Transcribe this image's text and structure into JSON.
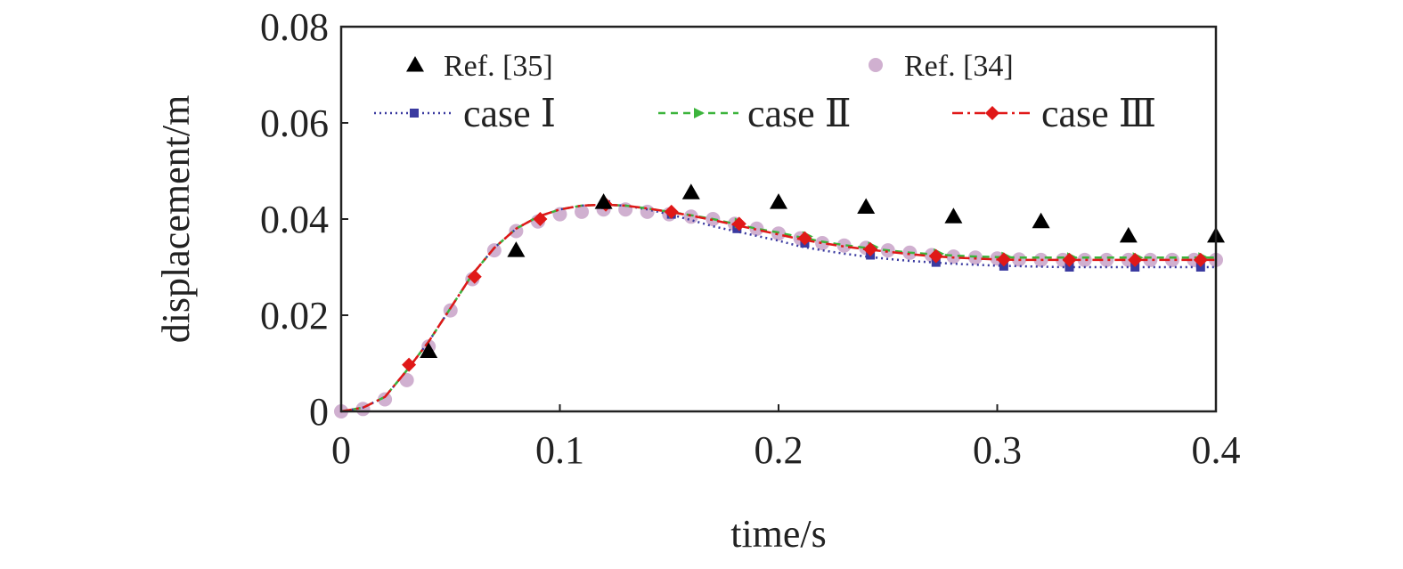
{
  "chart_data": {
    "type": "line",
    "xlabel": "time/s",
    "ylabel": "displacement/m",
    "xlim": [
      0,
      0.4
    ],
    "ylim": [
      0,
      0.08
    ],
    "x_ticks": [
      0,
      0.1,
      0.2,
      0.3,
      0.4
    ],
    "x_tick_labels": [
      "0",
      "0.1",
      "0.2",
      "0.3",
      "0.4"
    ],
    "y_ticks": [
      0,
      0.02,
      0.04,
      0.06,
      0.08
    ],
    "y_tick_labels": [
      "0",
      "0.02",
      "0.04",
      "0.06",
      "0.08"
    ],
    "grid": false,
    "legend_position": "top",
    "series": [
      {
        "name": "Ref. [35]",
        "style": "markers",
        "marker": "triangle",
        "color": "#000000",
        "x": [
          0.04,
          0.08,
          0.12,
          0.16,
          0.2,
          0.24,
          0.28,
          0.32,
          0.36,
          0.4
        ],
        "y": [
          0.0125,
          0.0335,
          0.0435,
          0.0455,
          0.0435,
          0.0425,
          0.0405,
          0.0395,
          0.0365,
          0.0365
        ]
      },
      {
        "name": "Ref. [34]",
        "style": "markers",
        "marker": "circle",
        "color": "#c8a2c8",
        "x": [
          0,
          0.01,
          0.02,
          0.03,
          0.04,
          0.05,
          0.06,
          0.07,
          0.08,
          0.09,
          0.1,
          0.11,
          0.12,
          0.13,
          0.14,
          0.15,
          0.16,
          0.17,
          0.18,
          0.19,
          0.2,
          0.21,
          0.22,
          0.23,
          0.24,
          0.25,
          0.26,
          0.27,
          0.28,
          0.29,
          0.3,
          0.31,
          0.32,
          0.33,
          0.34,
          0.35,
          0.36,
          0.37,
          0.38,
          0.39,
          0.4
        ],
        "y": [
          0,
          0.0005,
          0.0025,
          0.0065,
          0.0135,
          0.021,
          0.0275,
          0.0335,
          0.0375,
          0.0395,
          0.041,
          0.0415,
          0.042,
          0.042,
          0.0415,
          0.041,
          0.0405,
          0.04,
          0.039,
          0.038,
          0.037,
          0.036,
          0.035,
          0.0345,
          0.034,
          0.0335,
          0.033,
          0.0325,
          0.0322,
          0.032,
          0.0318,
          0.0316,
          0.0315,
          0.0315,
          0.0315,
          0.0315,
          0.0315,
          0.0315,
          0.0315,
          0.0315,
          0.0315
        ]
      },
      {
        "name": "case Ⅰ",
        "style": "dotted",
        "marker": "square",
        "color": "#3a3aa0",
        "x": [
          0,
          0.01,
          0.02,
          0.03,
          0.04,
          0.05,
          0.06,
          0.07,
          0.08,
          0.09,
          0.1,
          0.11,
          0.12,
          0.13,
          0.14,
          0.15,
          0.16,
          0.17,
          0.18,
          0.19,
          0.2,
          0.21,
          0.22,
          0.23,
          0.24,
          0.25,
          0.26,
          0.27,
          0.28,
          0.29,
          0.3,
          0.31,
          0.32,
          0.33,
          0.34,
          0.35,
          0.36,
          0.37,
          0.38,
          0.39,
          0.4
        ],
        "y": [
          0,
          0.0008,
          0.003,
          0.0085,
          0.0145,
          0.0215,
          0.0285,
          0.034,
          0.038,
          0.0405,
          0.042,
          0.0428,
          0.043,
          0.0428,
          0.042,
          0.041,
          0.0398,
          0.0385,
          0.0375,
          0.0365,
          0.0355,
          0.0343,
          0.0335,
          0.0328,
          0.0322,
          0.0317,
          0.0313,
          0.031,
          0.0307,
          0.0305,
          0.0303,
          0.0302,
          0.0301,
          0.03,
          0.03,
          0.03,
          0.03,
          0.03,
          0.03,
          0.03,
          0.03
        ],
        "marker_x": [
          0.121,
          0.151,
          0.181,
          0.212,
          0.242,
          0.272,
          0.303,
          0.333,
          0.363,
          0.393
        ],
        "marker_y": [
          0.043,
          0.041,
          0.038,
          0.035,
          0.0325,
          0.031,
          0.0302,
          0.03,
          0.03,
          0.03
        ]
      },
      {
        "name": "case Ⅱ",
        "style": "dashed",
        "marker": "triangle-right",
        "color": "#3cb43c",
        "x": [
          0,
          0.01,
          0.02,
          0.03,
          0.04,
          0.05,
          0.06,
          0.07,
          0.08,
          0.09,
          0.1,
          0.11,
          0.12,
          0.13,
          0.14,
          0.15,
          0.16,
          0.17,
          0.18,
          0.19,
          0.2,
          0.21,
          0.22,
          0.23,
          0.24,
          0.25,
          0.26,
          0.27,
          0.28,
          0.29,
          0.3,
          0.31,
          0.32,
          0.33,
          0.34,
          0.35,
          0.36,
          0.37,
          0.38,
          0.39,
          0.4
        ],
        "y": [
          0,
          0.0008,
          0.003,
          0.0085,
          0.0145,
          0.0215,
          0.0285,
          0.034,
          0.038,
          0.0405,
          0.042,
          0.0428,
          0.043,
          0.0428,
          0.0422,
          0.0415,
          0.0408,
          0.04,
          0.039,
          0.038,
          0.0372,
          0.0362,
          0.0353,
          0.0346,
          0.034,
          0.0335,
          0.033,
          0.0327,
          0.0324,
          0.0322,
          0.0321,
          0.032,
          0.032,
          0.032,
          0.032,
          0.032,
          0.032,
          0.032,
          0.032,
          0.032,
          0.032
        ],
        "marker_x": [
          0.152,
          0.182,
          0.213,
          0.243,
          0.273,
          0.304,
          0.334,
          0.364,
          0.394
        ],
        "marker_y": [
          0.0413,
          0.0392,
          0.0364,
          0.0342,
          0.0328,
          0.0321,
          0.032,
          0.032,
          0.032
        ]
      },
      {
        "name": "case Ⅲ",
        "style": "dashdot",
        "marker": "diamond",
        "color": "#e01818",
        "x": [
          0,
          0.01,
          0.02,
          0.03,
          0.04,
          0.05,
          0.06,
          0.07,
          0.08,
          0.09,
          0.1,
          0.11,
          0.12,
          0.13,
          0.14,
          0.15,
          0.16,
          0.17,
          0.18,
          0.19,
          0.2,
          0.21,
          0.22,
          0.23,
          0.24,
          0.25,
          0.26,
          0.27,
          0.28,
          0.29,
          0.3,
          0.31,
          0.32,
          0.33,
          0.34,
          0.35,
          0.36,
          0.37,
          0.38,
          0.39,
          0.4
        ],
        "y": [
          0,
          0.0008,
          0.003,
          0.0085,
          0.0145,
          0.0215,
          0.0285,
          0.034,
          0.038,
          0.0405,
          0.042,
          0.0428,
          0.043,
          0.0428,
          0.0422,
          0.0415,
          0.0407,
          0.0398,
          0.0388,
          0.0378,
          0.0368,
          0.0358,
          0.035,
          0.0343,
          0.0337,
          0.0332,
          0.0327,
          0.0323,
          0.032,
          0.0318,
          0.0316,
          0.0315,
          0.0315,
          0.0315,
          0.0315,
          0.0315,
          0.0315,
          0.0315,
          0.0315,
          0.0315,
          0.0315
        ],
        "marker_x": [
          0.031,
          0.061,
          0.091,
          0.121,
          0.151,
          0.182,
          0.212,
          0.242,
          0.272,
          0.303,
          0.333,
          0.363,
          0.393
        ],
        "marker_y": [
          0.0097,
          0.028,
          0.04,
          0.043,
          0.0415,
          0.039,
          0.036,
          0.0337,
          0.0323,
          0.0316,
          0.0315,
          0.0315,
          0.0315
        ]
      }
    ]
  }
}
